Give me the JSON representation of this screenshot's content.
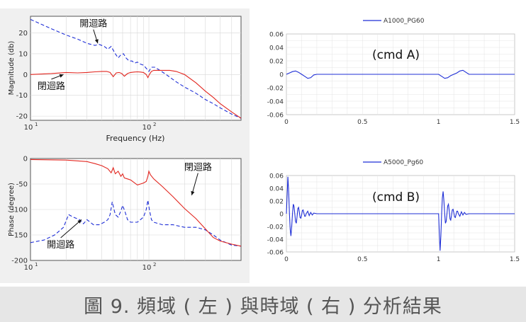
{
  "caption": "圖 9. 頻域 ( 左 ) 與時域 ( 右 ) 分析結果",
  "chart_data": [
    {
      "id": "bode-magnitude",
      "type": "line",
      "xscale": "log",
      "xlim": [
        10,
        600
      ],
      "ylim": [
        -22,
        28
      ],
      "xticks": [
        {
          "v": 10,
          "base": "10",
          "exp": "1"
        },
        {
          "v": 100,
          "base": "10",
          "exp": "2"
        }
      ],
      "yticks": [
        20,
        10,
        0,
        -10,
        -20
      ],
      "xlabel": "Frequency  (Hz)",
      "ylabel": "Magnitude  (db)",
      "grid": true,
      "series": [
        {
          "name": "開迴路",
          "color": "#1f2fd6",
          "dash": true,
          "x": [
            10,
            15,
            20,
            25,
            30,
            35,
            38,
            42,
            45,
            48,
            52,
            55,
            58,
            61,
            64,
            68,
            72,
            76,
            80,
            85,
            90,
            95,
            100,
            105,
            112,
            120,
            140,
            170,
            200,
            250,
            300,
            350,
            400,
            500,
            600
          ],
          "y": [
            26.5,
            22,
            19,
            17,
            15,
            14,
            14.5,
            13.5,
            12.2,
            13.5,
            10,
            8,
            9.5,
            10,
            8,
            6.5,
            6.5,
            5.5,
            6,
            5,
            4.5,
            3,
            1.5,
            3.5,
            3.5,
            2.5,
            0,
            -3.5,
            -6,
            -9,
            -12,
            -14,
            -16,
            -19,
            -21
          ]
        },
        {
          "name": "閉迴路",
          "color": "#e2261f",
          "dash": false,
          "x": [
            10,
            15,
            20,
            25,
            30,
            35,
            40,
            44,
            47,
            50,
            53,
            56,
            59,
            62,
            66,
            70,
            75,
            80,
            85,
            90,
            95,
            98,
            101,
            105,
            110,
            120,
            135,
            150,
            170,
            200,
            250,
            300,
            350,
            400,
            500,
            600
          ],
          "y": [
            0,
            0.5,
            1,
            0.8,
            1,
            1.3,
            1.5,
            1.5,
            1,
            -1,
            0.8,
            1,
            0.5,
            -0.8,
            0.5,
            1,
            1.2,
            1.3,
            1.2,
            1,
            0,
            -1.5,
            0,
            1.5,
            2,
            2,
            2,
            2,
            1.5,
            0,
            -4,
            -8,
            -11,
            -14,
            -18,
            -21
          ]
        }
      ],
      "annotations": [
        {
          "text": "開迴路",
          "x": 34,
          "y": 23,
          "arrow_x": 37,
          "arrow_y": 15
        },
        {
          "text": "閉迴路",
          "x": 15,
          "y": -7,
          "arrow_x": 19,
          "arrow_y": 0
        }
      ]
    },
    {
      "id": "bode-phase",
      "type": "line",
      "xscale": "log",
      "xlim": [
        10,
        600
      ],
      "ylim": [
        -200,
        0
      ],
      "xticks": [
        {
          "v": 10,
          "base": "10",
          "exp": "1"
        },
        {
          "v": 100,
          "base": "10",
          "exp": "2"
        }
      ],
      "yticks": [
        0,
        -50,
        -100,
        -150,
        -200
      ],
      "xlabel": "",
      "ylabel": "Phase  (degree)",
      "grid": true,
      "series": [
        {
          "name": "開迴路",
          "color": "#1f2fd6",
          "dash": true,
          "x": [
            10,
            13,
            16,
            19,
            21,
            23,
            26,
            28,
            30,
            32,
            34,
            38,
            42,
            45,
            47,
            49,
            52,
            55,
            58,
            60,
            63,
            66,
            70,
            80,
            90,
            95,
            98,
            101,
            105,
            110,
            130,
            160,
            200,
            250,
            300,
            350,
            400,
            500,
            600
          ],
          "y": [
            -165,
            -160,
            -150,
            -135,
            -110,
            -115,
            -120,
            -128,
            -120,
            -125,
            -130,
            -130,
            -125,
            -120,
            -110,
            -85,
            -110,
            -115,
            -103,
            -92,
            -105,
            -120,
            -125,
            -125,
            -115,
            -100,
            -82,
            -100,
            -120,
            -125,
            -130,
            -130,
            -135,
            -135,
            -140,
            -150,
            -160,
            -170,
            -172
          ]
        },
        {
          "name": "閉迴路",
          "color": "#e2261f",
          "dash": false,
          "x": [
            10,
            20,
            30,
            35,
            40,
            45,
            48,
            50,
            52,
            55,
            58,
            60,
            62,
            66,
            70,
            80,
            90,
            95,
            98,
            100,
            103,
            110,
            130,
            160,
            200,
            250,
            300,
            350,
            400,
            500,
            600
          ],
          "y": [
            -2,
            -3,
            -6,
            -10,
            -14,
            -20,
            -28,
            -18,
            -30,
            -25,
            -35,
            -30,
            -38,
            -40,
            -42,
            -52,
            -48,
            -45,
            -35,
            -25,
            -32,
            -40,
            -55,
            -75,
            -98,
            -118,
            -138,
            -155,
            -162,
            -168,
            -172
          ]
        }
      ],
      "annotations": [
        {
          "text": "閉迴路",
          "x": 260,
          "y": -23,
          "arrow_x": 230,
          "arrow_y": -72
        },
        {
          "text": "開迴路",
          "x": 18,
          "y": -175,
          "arrow_x": 27,
          "arrow_y": -120
        }
      ]
    },
    {
      "id": "time-cmd-a",
      "type": "line",
      "xscale": "linear",
      "xlim": [
        0,
        1.5
      ],
      "ylim": [
        -0.06,
        0.06
      ],
      "xticks": [
        {
          "v": 0,
          "label": "0"
        },
        {
          "v": 0.5,
          "label": "0.5"
        },
        {
          "v": 1,
          "label": "1"
        },
        {
          "v": 1.5,
          "label": "1.5"
        }
      ],
      "yticks": [
        0.06,
        0.04,
        0.02,
        0,
        -0.02,
        -0.04,
        -0.06
      ],
      "ytick_labels": [
        "0.06",
        "0.04",
        "0.02",
        "0",
        "-0.02",
        "-0.04",
        "-0.06"
      ],
      "legend": "A1000_PG60",
      "legend_position": "top-center",
      "inner_label": "(cmd A)",
      "grid": true,
      "series": [
        {
          "name": "A1000_PG60",
          "color": "#1f2fd6",
          "x": [
            0,
            0.02,
            0.04,
            0.06,
            0.08,
            0.1,
            0.12,
            0.14,
            0.16,
            0.18,
            0.2,
            0.25,
            0.5,
            1.0,
            1.02,
            1.04,
            1.06,
            1.08,
            1.1,
            1.12,
            1.14,
            1.16,
            1.18,
            1.2,
            1.25,
            1.5
          ],
          "y": [
            0,
            0.002,
            0.004,
            0.005,
            0.003,
            0,
            -0.003,
            -0.006,
            -0.005,
            -0.001,
            0,
            0,
            0,
            0,
            -0.003,
            -0.006,
            -0.005,
            -0.002,
            0,
            0.002,
            0.005,
            0.006,
            0.003,
            0,
            0,
            0
          ]
        }
      ]
    },
    {
      "id": "time-cmd-b",
      "type": "line",
      "xscale": "linear",
      "xlim": [
        0,
        1.5
      ],
      "ylim": [
        -0.06,
        0.06
      ],
      "xticks": [
        {
          "v": 0,
          "label": "0"
        },
        {
          "v": 0.5,
          "label": "0.5"
        },
        {
          "v": 1,
          "label": "1"
        },
        {
          "v": 1.5,
          "label": "1.5"
        }
      ],
      "yticks": [
        0.06,
        0.04,
        0.02,
        0,
        -0.02,
        -0.04,
        -0.06
      ],
      "ytick_labels": [
        "0.06",
        "0.04",
        "0.02",
        "0",
        "-0.02",
        "-0.04",
        "-0.06"
      ],
      "legend": "A5000_Pg60",
      "legend_position": "top-center",
      "inner_label": "(cmd B)",
      "grid": true,
      "series": [
        {
          "name": "A5000_Pg60",
          "color": "#1f2fd6",
          "x": [
            0,
            0.005,
            0.01,
            0.015,
            0.02,
            0.025,
            0.03,
            0.035,
            0.04,
            0.045,
            0.05,
            0.055,
            0.06,
            0.065,
            0.07,
            0.075,
            0.08,
            0.085,
            0.09,
            0.095,
            0.1,
            0.105,
            0.11,
            0.115,
            0.12,
            0.125,
            0.13,
            0.14,
            0.15,
            0.16,
            0.17,
            0.18,
            0.2,
            0.25,
            0.5,
            1.0,
            1.005,
            1.01,
            1.015,
            1.02,
            1.025,
            1.03,
            1.035,
            1.04,
            1.045,
            1.05,
            1.055,
            1.06,
            1.065,
            1.07,
            1.075,
            1.08,
            1.085,
            1.09,
            1.095,
            1.1,
            1.105,
            1.11,
            1.115,
            1.12,
            1.125,
            1.13,
            1.14,
            1.15,
            1.16,
            1.17,
            1.18,
            1.2,
            1.25,
            1.5
          ],
          "y": [
            0,
            0.03,
            0.058,
            0.035,
            0,
            -0.025,
            -0.035,
            -0.02,
            0,
            0.015,
            0.012,
            0,
            -0.012,
            -0.015,
            -0.005,
            0.008,
            0.01,
            0.003,
            -0.006,
            -0.007,
            -0.002,
            0.005,
            0.006,
            0.001,
            -0.004,
            -0.004,
            0,
            0.004,
            -0.003,
            0.002,
            -0.002,
            0.001,
            0,
            0,
            0,
            0,
            -0.03,
            -0.058,
            -0.035,
            0,
            0.025,
            0.035,
            0.02,
            0,
            -0.015,
            -0.012,
            0,
            0.012,
            0.015,
            0.005,
            -0.008,
            -0.01,
            -0.003,
            0.006,
            0.007,
            0.002,
            -0.005,
            -0.006,
            -0.001,
            0.004,
            0.004,
            0,
            -0.004,
            0.003,
            -0.002,
            0.002,
            -0.001,
            0,
            0,
            0
          ]
        }
      ]
    }
  ]
}
